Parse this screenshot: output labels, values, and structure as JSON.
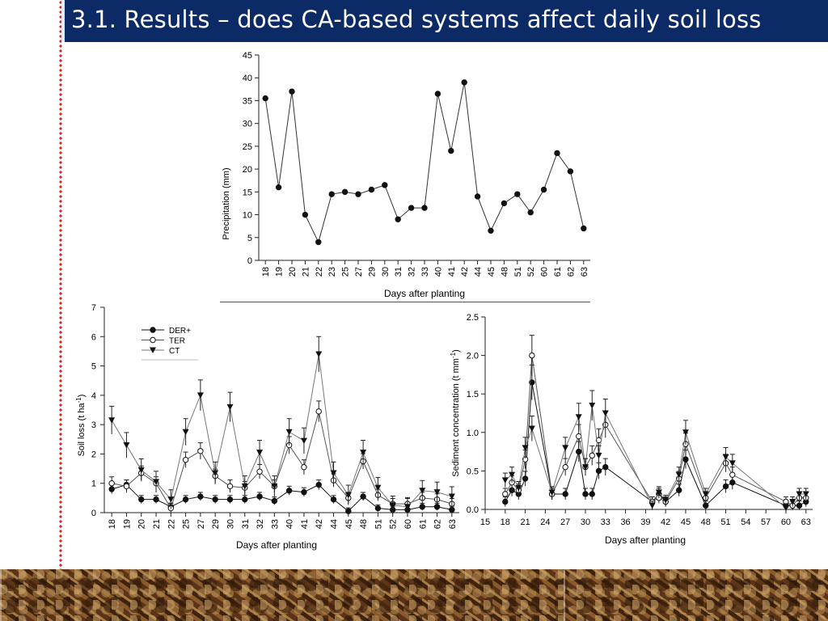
{
  "slide": {
    "title": "3.1. Results – does CA-based systems affect daily soil loss"
  },
  "chart_data": [
    {
      "type": "line",
      "id": "precipitation",
      "xlabel": "Days after planting",
      "ylabel": "Precipitation (mm)",
      "ylim": [
        0,
        45
      ],
      "yticks": [
        0,
        5,
        10,
        15,
        20,
        25,
        30,
        35,
        40,
        45
      ],
      "categories": [
        "18",
        "19",
        "20",
        "21",
        "22",
        "23",
        "25",
        "27",
        "29",
        "30",
        "31",
        "32",
        "33",
        "40",
        "41",
        "42",
        "44",
        "45",
        "48",
        "51",
        "52",
        "60",
        "61",
        "62",
        "63"
      ],
      "series": [
        {
          "name": "Precipitation",
          "values": [
            35.5,
            16,
            37,
            10,
            4,
            14.5,
            15,
            14.5,
            15.5,
            16.5,
            9,
            11.5,
            11.5,
            36.5,
            24,
            39,
            14,
            6.5,
            12.5,
            14.5,
            10.5,
            15.5,
            23.5,
            19.5,
            7
          ]
        }
      ]
    },
    {
      "type": "line",
      "id": "soil-loss",
      "xlabel": "Days after planting",
      "ylabel": "Soil loss (t ha",
      "ylabel_sup": "-1",
      "ylabel_end": ")",
      "ylim": [
        0,
        7
      ],
      "yticks": [
        0,
        1,
        2,
        3,
        4,
        5,
        6,
        7
      ],
      "categories": [
        "18",
        "19",
        "20",
        "21",
        "22",
        "25",
        "27",
        "29",
        "30",
        "31",
        "32",
        "33",
        "40",
        "41",
        "42",
        "44",
        "45",
        "48",
        "51",
        "52",
        "60",
        "61",
        "62",
        "63"
      ],
      "legend": [
        "DER+",
        "TER",
        "CT"
      ],
      "series": [
        {
          "name": "DER+",
          "marker": "filled-circle",
          "values": [
            0.8,
            0.95,
            0.45,
            0.45,
            0.2,
            0.45,
            0.55,
            0.45,
            0.45,
            0.45,
            0.55,
            0.4,
            0.75,
            0.7,
            0.95,
            0.45,
            0.05,
            0.55,
            0.15,
            0.1,
            0.1,
            0.2,
            0.2,
            0.1
          ]
        },
        {
          "name": "TER",
          "marker": "open-circle",
          "values": [
            1.0,
            0.9,
            1.35,
            1.0,
            0.15,
            1.8,
            2.1,
            1.25,
            0.9,
            0.85,
            1.4,
            0.9,
            2.3,
            1.55,
            3.45,
            1.1,
            0.5,
            1.75,
            0.6,
            0.3,
            0.3,
            0.5,
            0.45,
            0.3
          ]
        },
        {
          "name": "CT",
          "marker": "filled-triangle-down",
          "values": [
            3.15,
            2.3,
            1.45,
            1.05,
            0.45,
            2.75,
            4.0,
            1.35,
            3.6,
            0.9,
            2.05,
            0.9,
            2.75,
            2.45,
            5.4,
            1.35,
            0.6,
            2.05,
            0.85,
            0.25,
            0.2,
            0.75,
            0.7,
            0.55
          ]
        }
      ]
    },
    {
      "type": "line",
      "id": "sediment-concentration",
      "xlabel": "Days after planting",
      "ylabel": "Sediment concentration (t mm",
      "ylabel_sup": "-1",
      "ylabel_end": ")",
      "xlim": [
        15,
        64
      ],
      "xticks": [
        15,
        18,
        21,
        24,
        27,
        30,
        33,
        36,
        39,
        42,
        45,
        48,
        51,
        54,
        57,
        60,
        63
      ],
      "ylim": [
        0,
        2.5
      ],
      "yticks": [
        "0.0",
        "0.5",
        "1.0",
        "1.5",
        "2.0",
        "2.5"
      ],
      "series": [
        {
          "name": "DER+",
          "marker": "filled-circle",
          "x": [
            18,
            19,
            20,
            21,
            22,
            25,
            27,
            29,
            30,
            31,
            32,
            33,
            40,
            41,
            42,
            44,
            45,
            48,
            51,
            52,
            60,
            61,
            62,
            63
          ],
          "values": [
            0.1,
            0.25,
            0.2,
            0.4,
            1.65,
            0.2,
            0.2,
            0.75,
            0.2,
            0.2,
            0.5,
            0.55,
            0.1,
            0.2,
            0.1,
            0.25,
            0.65,
            0.05,
            0.3,
            0.35,
            0.05,
            0.05,
            0.05,
            0.1
          ]
        },
        {
          "name": "TER",
          "marker": "open-circle",
          "x": [
            18,
            19,
            20,
            21,
            22,
            25,
            27,
            29,
            30,
            31,
            32,
            33,
            40,
            41,
            42,
            44,
            45,
            48,
            51,
            52,
            60,
            61,
            62,
            63
          ],
          "values": [
            0.2,
            0.35,
            0.25,
            0.65,
            2.0,
            0.2,
            0.55,
            0.95,
            0.55,
            0.7,
            0.9,
            1.1,
            0.1,
            0.15,
            0.1,
            0.4,
            0.85,
            0.15,
            0.6,
            0.45,
            0.1,
            0.05,
            0.15,
            0.15
          ]
        },
        {
          "name": "CT",
          "marker": "filled-triangle-down",
          "x": [
            18,
            19,
            20,
            21,
            22,
            25,
            27,
            29,
            30,
            31,
            32,
            33,
            40,
            41,
            42,
            44,
            45,
            48,
            51,
            52,
            60,
            61,
            62,
            63
          ],
          "values": [
            0.38,
            0.45,
            0.28,
            0.8,
            1.05,
            0.22,
            0.8,
            1.2,
            0.55,
            1.35,
            0.7,
            1.25,
            0.05,
            0.22,
            0.12,
            0.45,
            1.0,
            0.2,
            0.68,
            0.6,
            0.02,
            0.1,
            0.2,
            0.2
          ]
        }
      ]
    }
  ]
}
